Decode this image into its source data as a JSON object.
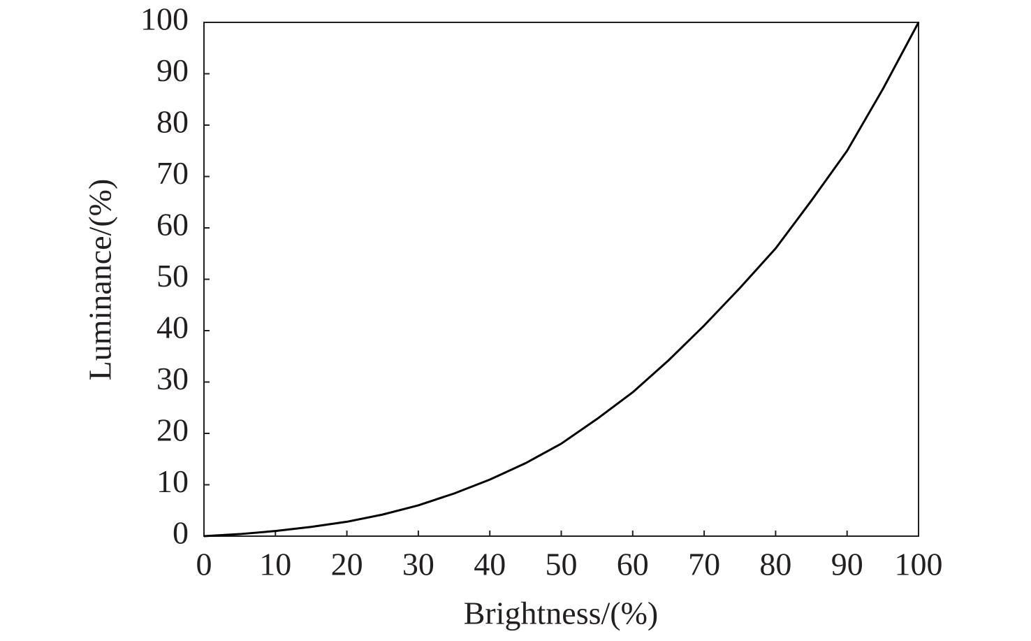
{
  "chart_data": {
    "type": "line",
    "x_label": "Brightness/(%)",
    "y_label": "Luminance/(%)",
    "x": [
      0,
      5,
      10,
      15,
      20,
      25,
      30,
      35,
      40,
      45,
      50,
      55,
      60,
      65,
      70,
      75,
      80,
      85,
      90,
      95,
      100
    ],
    "series": [
      {
        "color": "#000000",
        "values": [
          0,
          0.4,
          1,
          1.8,
          2.8,
          4.2,
          6,
          8.3,
          11,
          14.2,
          18,
          22.8,
          28,
          34.2,
          41,
          48.3,
          56,
          65.3,
          75,
          87,
          100
        ]
      }
    ],
    "xlim": [
      0,
      100
    ],
    "ylim": [
      0,
      100
    ],
    "xticks": [
      0,
      10,
      20,
      30,
      40,
      50,
      60,
      70,
      80,
      90,
      100
    ],
    "yticks": [
      0,
      10,
      20,
      30,
      40,
      50,
      60,
      70,
      80,
      90,
      100
    ]
  }
}
